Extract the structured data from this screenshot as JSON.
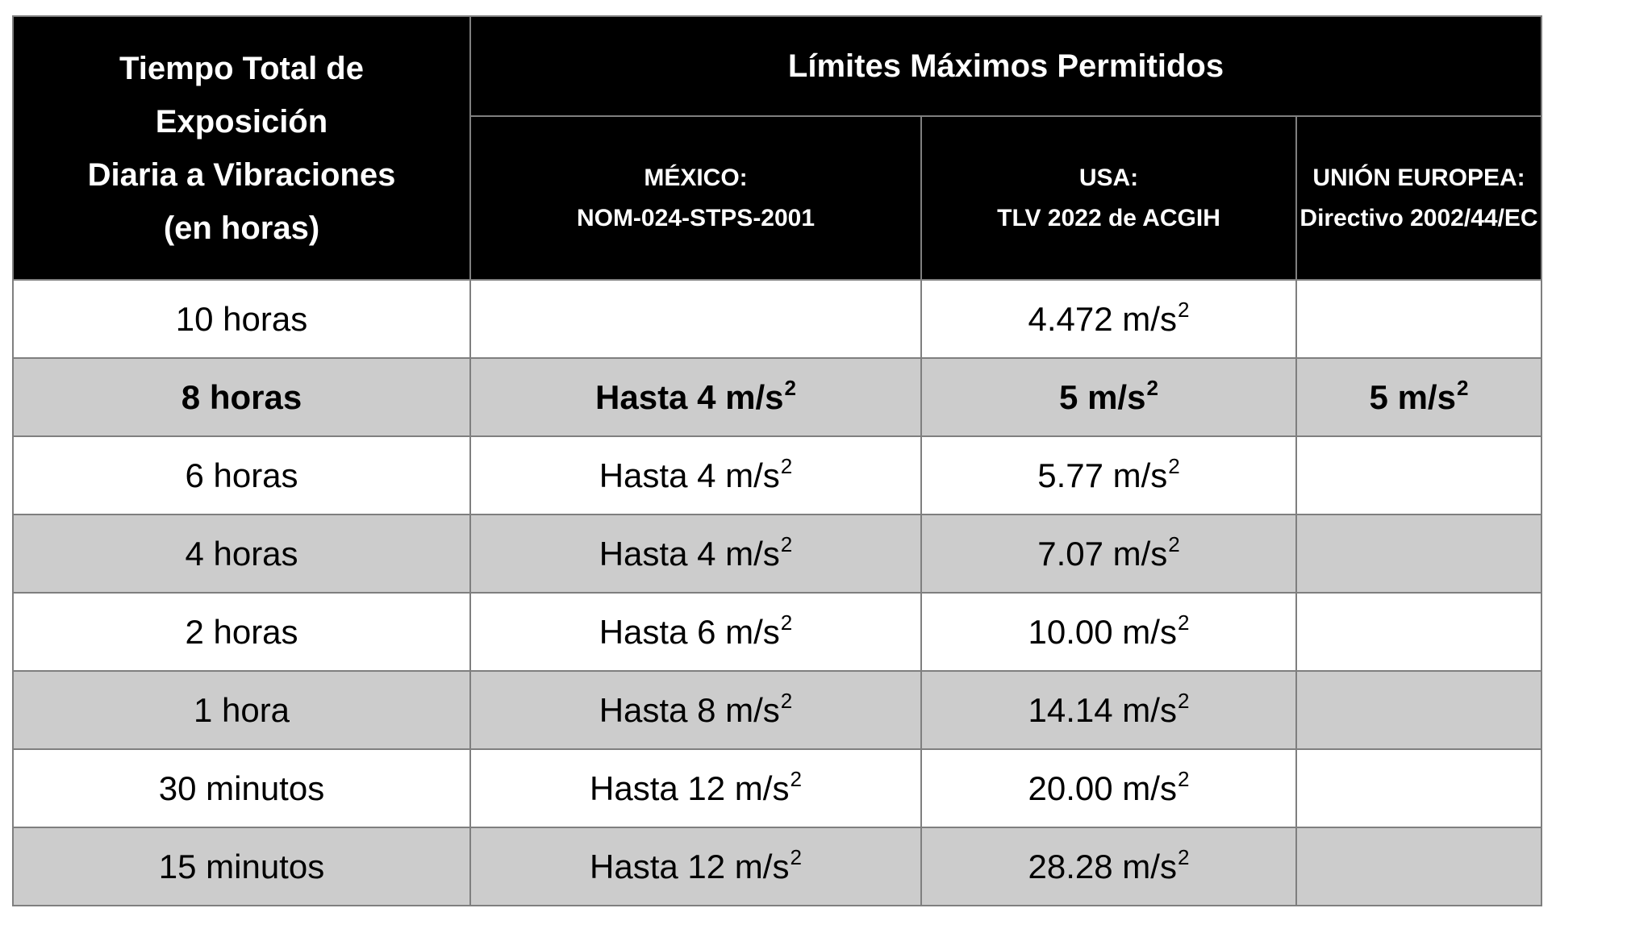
{
  "table": {
    "header": {
      "time_column": {
        "lines": [
          "Tiempo Total de",
          "Exposición",
          "Diaria a Vibraciones",
          "(en horas)"
        ]
      },
      "limits_title": "Límites Máximos Permitidos",
      "regions": [
        {
          "country": "MÉXICO:",
          "norm": "NOM-024-STPS-2001"
        },
        {
          "country": "USA:",
          "norm": "TLV 2022 de ACGIH"
        },
        {
          "country": "UNIÓN EUROPEA:",
          "norm": "Directivo 2002/44/EC"
        }
      ]
    },
    "unit_base": "m/s",
    "unit_exponent": "2",
    "rows": [
      {
        "time": "10 horas",
        "mexico": "",
        "usa": "4.472 m/s",
        "eu": "",
        "bold": false
      },
      {
        "time": "8 horas",
        "mexico": "Hasta 4 m/s",
        "usa": "5 m/s",
        "eu": "5 m/s",
        "bold": true
      },
      {
        "time": "6 horas",
        "mexico": "Hasta 4 m/s",
        "usa": "5.77 m/s",
        "eu": "",
        "bold": false
      },
      {
        "time": "4 horas",
        "mexico": "Hasta 4 m/s",
        "usa": "7.07 m/s",
        "eu": "",
        "bold": false
      },
      {
        "time": "2 horas",
        "mexico": "Hasta 6 m/s",
        "usa": "10.00 m/s",
        "eu": "",
        "bold": false
      },
      {
        "time": "1 hora",
        "mexico": "Hasta 8 m/s",
        "usa": "14.14 m/s",
        "eu": "",
        "bold": false
      },
      {
        "time": "30 minutos",
        "mexico": "Hasta 12 m/s",
        "usa": "20.00 m/s",
        "eu": "",
        "bold": false
      },
      {
        "time": "15 minutos",
        "mexico": "Hasta 12 m/s",
        "usa": "28.28 m/s",
        "eu": "",
        "bold": false
      }
    ]
  },
  "colors": {
    "header_bg": "#000000",
    "header_text": "#ffffff",
    "row_white": "#ffffff",
    "row_gray": "#cccccc",
    "border": "#7f7f7f"
  }
}
